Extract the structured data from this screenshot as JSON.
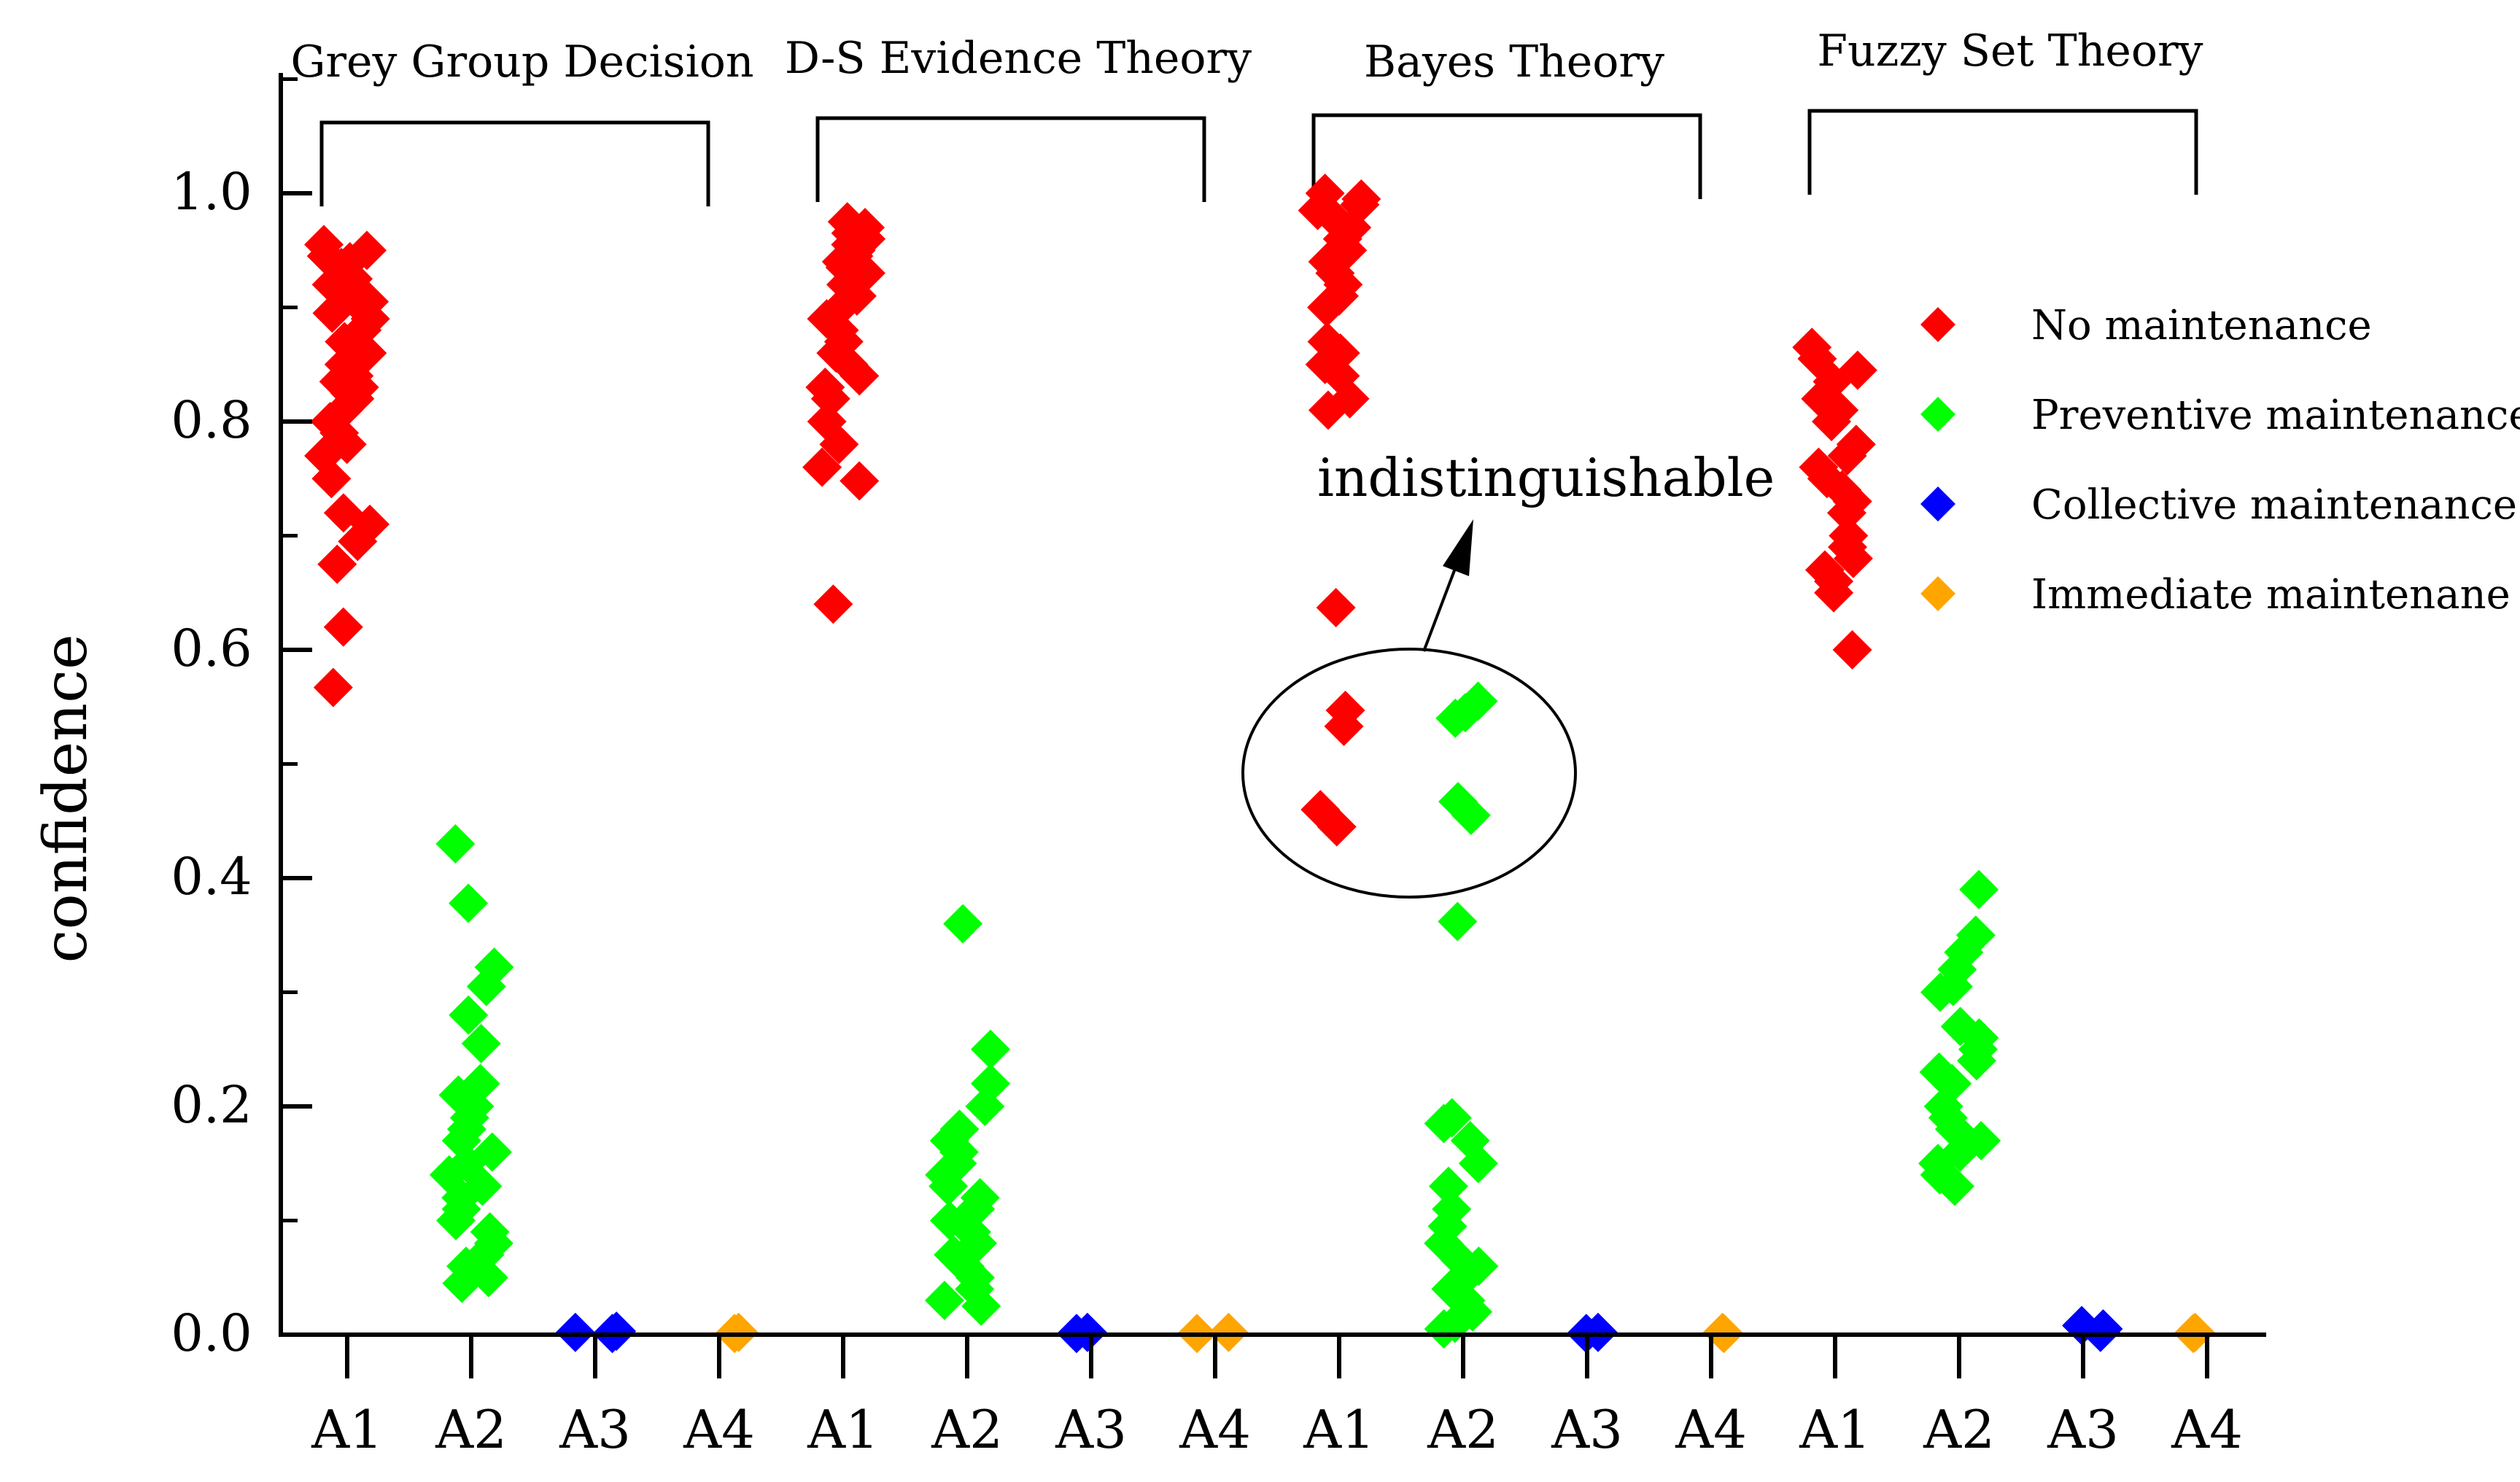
{
  "chart_data": {
    "type": "scatter",
    "ylabel": "confidence",
    "ylim": [
      0.0,
      1.1
    ],
    "yticks": [
      "0.0",
      "0.2",
      "0.4",
      "0.6",
      "0.8",
      "1.0"
    ],
    "categories": [
      "A1",
      "A2",
      "A3",
      "A4",
      "A1",
      "A2",
      "A3",
      "A4",
      "A1",
      "A2",
      "A3",
      "A4",
      "A1",
      "A2",
      "A3",
      "A4"
    ],
    "groups": [
      {
        "title": "Grey Group Decision"
      },
      {
        "title": "D-S Evidence Theory"
      },
      {
        "title": "Bayes Theory"
      },
      {
        "title": "Fuzzy Set Theory"
      }
    ],
    "legend": [
      {
        "label": "No maintenance",
        "color": "#ff0000"
      },
      {
        "label": "Preventive maintenance",
        "color": "#00ff00"
      },
      {
        "label": "Collective maintenance",
        "color": "#0000ff"
      },
      {
        "label": "Immediate maintenane",
        "color": "#ffa500"
      }
    ],
    "annotation": {
      "text": "indistinguishable",
      "ellipse_y_range": [
        0.38,
        0.6
      ]
    },
    "series": [
      {
        "name": "No maintenance",
        "color": "#ff0000",
        "points": [
          [
            0,
            0.955
          ],
          [
            0,
            0.95
          ],
          [
            0,
            0.945
          ],
          [
            0,
            0.94
          ],
          [
            0,
            0.935
          ],
          [
            0,
            0.93
          ],
          [
            0,
            0.925
          ],
          [
            0,
            0.92
          ],
          [
            0,
            0.915
          ],
          [
            0,
            0.91
          ],
          [
            0,
            0.905
          ],
          [
            0,
            0.9
          ],
          [
            0,
            0.895
          ],
          [
            0,
            0.89
          ],
          [
            0,
            0.88
          ],
          [
            0,
            0.87
          ],
          [
            0,
            0.86
          ],
          [
            0,
            0.85
          ],
          [
            0,
            0.84
          ],
          [
            0,
            0.835
          ],
          [
            0,
            0.83
          ],
          [
            0,
            0.825
          ],
          [
            0,
            0.82
          ],
          [
            0,
            0.81
          ],
          [
            0,
            0.8
          ],
          [
            0,
            0.79
          ],
          [
            0,
            0.78
          ],
          [
            0,
            0.77
          ],
          [
            0,
            0.75
          ],
          [
            0,
            0.72
          ],
          [
            0,
            0.71
          ],
          [
            0,
            0.695
          ],
          [
            0,
            0.675
          ],
          [
            0,
            0.62
          ],
          [
            0,
            0.567
          ],
          [
            4,
            0.975
          ],
          [
            4,
            0.97
          ],
          [
            4,
            0.965
          ],
          [
            4,
            0.96
          ],
          [
            4,
            0.955
          ],
          [
            4,
            0.95
          ],
          [
            4,
            0.945
          ],
          [
            4,
            0.94
          ],
          [
            4,
            0.935
          ],
          [
            4,
            0.93
          ],
          [
            4,
            0.92
          ],
          [
            4,
            0.91
          ],
          [
            4,
            0.9
          ],
          [
            4,
            0.89
          ],
          [
            4,
            0.88
          ],
          [
            4,
            0.87
          ],
          [
            4,
            0.86
          ],
          [
            4,
            0.85
          ],
          [
            4,
            0.84
          ],
          [
            4,
            0.83
          ],
          [
            4,
            0.82
          ],
          [
            4,
            0.8
          ],
          [
            4,
            0.78
          ],
          [
            4,
            0.76
          ],
          [
            4,
            0.748
          ],
          [
            4,
            0.64
          ],
          [
            8,
            1.0
          ],
          [
            8,
            0.995
          ],
          [
            8,
            0.99
          ],
          [
            8,
            0.985
          ],
          [
            8,
            0.98
          ],
          [
            8,
            0.97
          ],
          [
            8,
            0.96
          ],
          [
            8,
            0.95
          ],
          [
            8,
            0.94
          ],
          [
            8,
            0.93
          ],
          [
            8,
            0.92
          ],
          [
            8,
            0.91
          ],
          [
            8,
            0.9
          ],
          [
            8,
            0.87
          ],
          [
            8,
            0.86
          ],
          [
            8,
            0.85
          ],
          [
            8,
            0.84
          ],
          [
            8,
            0.82
          ],
          [
            8,
            0.81
          ],
          [
            8,
            0.637
          ],
          [
            8,
            0.547
          ],
          [
            8,
            0.533
          ],
          [
            8,
            0.46
          ],
          [
            8,
            0.445
          ],
          [
            12,
            0.865
          ],
          [
            12,
            0.855
          ],
          [
            12,
            0.845
          ],
          [
            12,
            0.835
          ],
          [
            12,
            0.82
          ],
          [
            12,
            0.81
          ],
          [
            12,
            0.8
          ],
          [
            12,
            0.78
          ],
          [
            12,
            0.77
          ],
          [
            12,
            0.76
          ],
          [
            12,
            0.75
          ],
          [
            12,
            0.74
          ],
          [
            12,
            0.73
          ],
          [
            12,
            0.72
          ],
          [
            12,
            0.7
          ],
          [
            12,
            0.69
          ],
          [
            12,
            0.68
          ],
          [
            12,
            0.67
          ],
          [
            12,
            0.66
          ],
          [
            12,
            0.65
          ],
          [
            12,
            0.6
          ]
        ]
      },
      {
        "name": "Preventive maintenance",
        "color": "#00ff00",
        "points": [
          [
            1,
            0.43
          ],
          [
            1,
            0.378
          ],
          [
            1,
            0.322
          ],
          [
            1,
            0.305
          ],
          [
            1,
            0.28
          ],
          [
            1,
            0.255
          ],
          [
            1,
            0.22
          ],
          [
            1,
            0.21
          ],
          [
            1,
            0.2
          ],
          [
            1,
            0.19
          ],
          [
            1,
            0.18
          ],
          [
            1,
            0.17
          ],
          [
            1,
            0.16
          ],
          [
            1,
            0.15
          ],
          [
            1,
            0.14
          ],
          [
            1,
            0.13
          ],
          [
            1,
            0.12
          ],
          [
            1,
            0.11
          ],
          [
            1,
            0.1
          ],
          [
            1,
            0.09
          ],
          [
            1,
            0.08
          ],
          [
            1,
            0.07
          ],
          [
            1,
            0.06
          ],
          [
            1,
            0.05
          ],
          [
            1,
            0.045
          ],
          [
            5,
            0.36
          ],
          [
            5,
            0.25
          ],
          [
            5,
            0.22
          ],
          [
            5,
            0.2
          ],
          [
            5,
            0.18
          ],
          [
            5,
            0.17
          ],
          [
            5,
            0.16
          ],
          [
            5,
            0.15
          ],
          [
            5,
            0.14
          ],
          [
            5,
            0.13
          ],
          [
            5,
            0.12
          ],
          [
            5,
            0.11
          ],
          [
            5,
            0.1
          ],
          [
            5,
            0.09
          ],
          [
            5,
            0.08
          ],
          [
            5,
            0.07
          ],
          [
            5,
            0.06
          ],
          [
            5,
            0.05
          ],
          [
            5,
            0.04
          ],
          [
            5,
            0.03
          ],
          [
            5,
            0.025
          ],
          [
            9,
            0.555
          ],
          [
            9,
            0.545
          ],
          [
            9,
            0.54
          ],
          [
            9,
            0.467
          ],
          [
            9,
            0.455
          ],
          [
            9,
            0.362
          ],
          [
            9,
            0.19
          ],
          [
            9,
            0.185
          ],
          [
            9,
            0.17
          ],
          [
            9,
            0.15
          ],
          [
            9,
            0.13
          ],
          [
            9,
            0.11
          ],
          [
            9,
            0.095
          ],
          [
            9,
            0.08
          ],
          [
            9,
            0.065
          ],
          [
            9,
            0.06
          ],
          [
            9,
            0.05
          ],
          [
            9,
            0.04
          ],
          [
            9,
            0.03
          ],
          [
            9,
            0.02
          ],
          [
            9,
            0.01
          ],
          [
            9,
            0.005
          ],
          [
            13,
            0.39
          ],
          [
            13,
            0.35
          ],
          [
            13,
            0.335
          ],
          [
            13,
            0.32
          ],
          [
            13,
            0.305
          ],
          [
            13,
            0.3
          ],
          [
            13,
            0.27
          ],
          [
            13,
            0.26
          ],
          [
            13,
            0.25
          ],
          [
            13,
            0.24
          ],
          [
            13,
            0.23
          ],
          [
            13,
            0.22
          ],
          [
            13,
            0.2
          ],
          [
            13,
            0.19
          ],
          [
            13,
            0.18
          ],
          [
            13,
            0.17
          ],
          [
            13,
            0.16
          ],
          [
            13,
            0.15
          ],
          [
            13,
            0.14
          ],
          [
            13,
            0.13
          ]
        ]
      },
      {
        "name": "Collective maintenance",
        "color": "#0000ff",
        "points": [
          [
            2,
            0.003
          ],
          [
            2,
            0.002
          ],
          [
            2,
            0.001
          ],
          [
            6,
            0.002
          ],
          [
            6,
            0.001
          ],
          [
            10,
            0.002
          ],
          [
            10,
            0.001
          ],
          [
            14,
            0.008
          ],
          [
            14,
            0.005
          ],
          [
            14,
            0.002
          ]
        ]
      },
      {
        "name": "Immediate maintenane",
        "color": "#ffa500",
        "points": [
          [
            3,
            0.002
          ],
          [
            3,
            0.001
          ],
          [
            7,
            0.002
          ],
          [
            7,
            0.001
          ],
          [
            11,
            0.002
          ],
          [
            11,
            0.001
          ],
          [
            15,
            0.002
          ],
          [
            15,
            0.001
          ]
        ]
      }
    ]
  }
}
